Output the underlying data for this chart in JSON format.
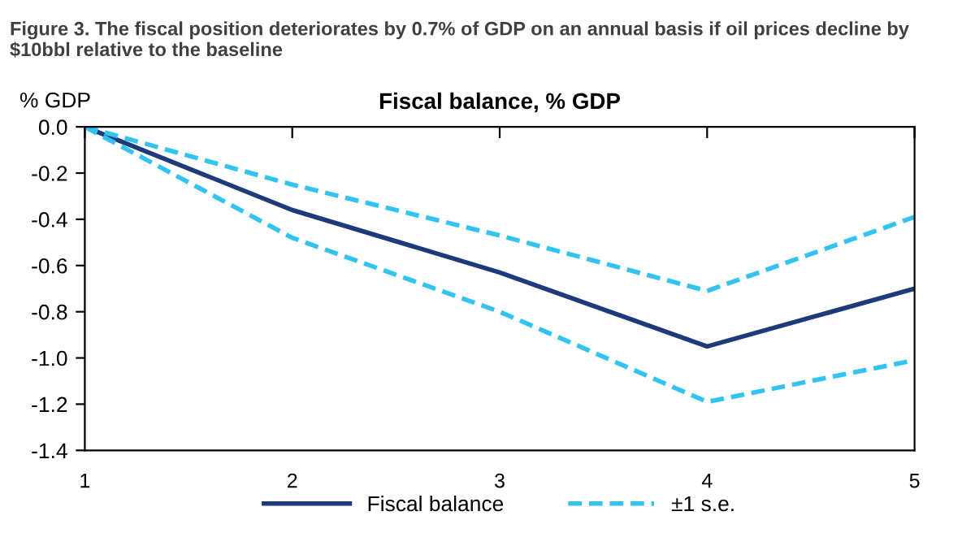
{
  "chart_data": {
    "type": "line",
    "title": "Fiscal balance, % GDP",
    "subtitle": "Figure 3. The fiscal position deteriorates by 0.7% of GDP on an annual basis if oil prices decline by $10bbl relative to the baseline",
    "ylabel": "% GDP",
    "x": [
      1,
      2,
      3,
      4,
      5
    ],
    "xlim": [
      1,
      5
    ],
    "xticks": [
      1,
      2,
      3,
      4,
      5
    ],
    "ylim": [
      -1.4,
      0.0
    ],
    "yticks": [
      {
        "value": -1.4,
        "label": "-1.4"
      },
      {
        "value": -1.2,
        "label": "-1.2"
      },
      {
        "value": -1.0,
        "label": "-1.0"
      },
      {
        "value": -0.8,
        "label": "-0.8"
      },
      {
        "value": -0.6,
        "label": "-0.6"
      },
      {
        "value": -0.4,
        "label": "-0.4"
      },
      {
        "value": -0.2,
        "label": "-0.2"
      },
      {
        "value": 0.0,
        "label": "0.0"
      }
    ],
    "series": [
      {
        "name": "Fiscal balance",
        "color": "#1f3a7a",
        "line_style": "solid",
        "values": [
          0,
          -0.36,
          -0.63,
          -0.95,
          -0.7
        ]
      },
      {
        "name": "±1 s.e.",
        "color": "#33c3f0",
        "line_style": "dashed",
        "values": [
          0,
          -0.25,
          -0.47,
          -0.71,
          -0.39
        ]
      },
      {
        "color": "#33c3f0",
        "line_style": "dashed",
        "values": [
          0,
          -0.48,
          -0.8,
          -1.19,
          -1.01
        ]
      }
    ],
    "grid": false,
    "legend": "bottom",
    "marker": "none"
  }
}
